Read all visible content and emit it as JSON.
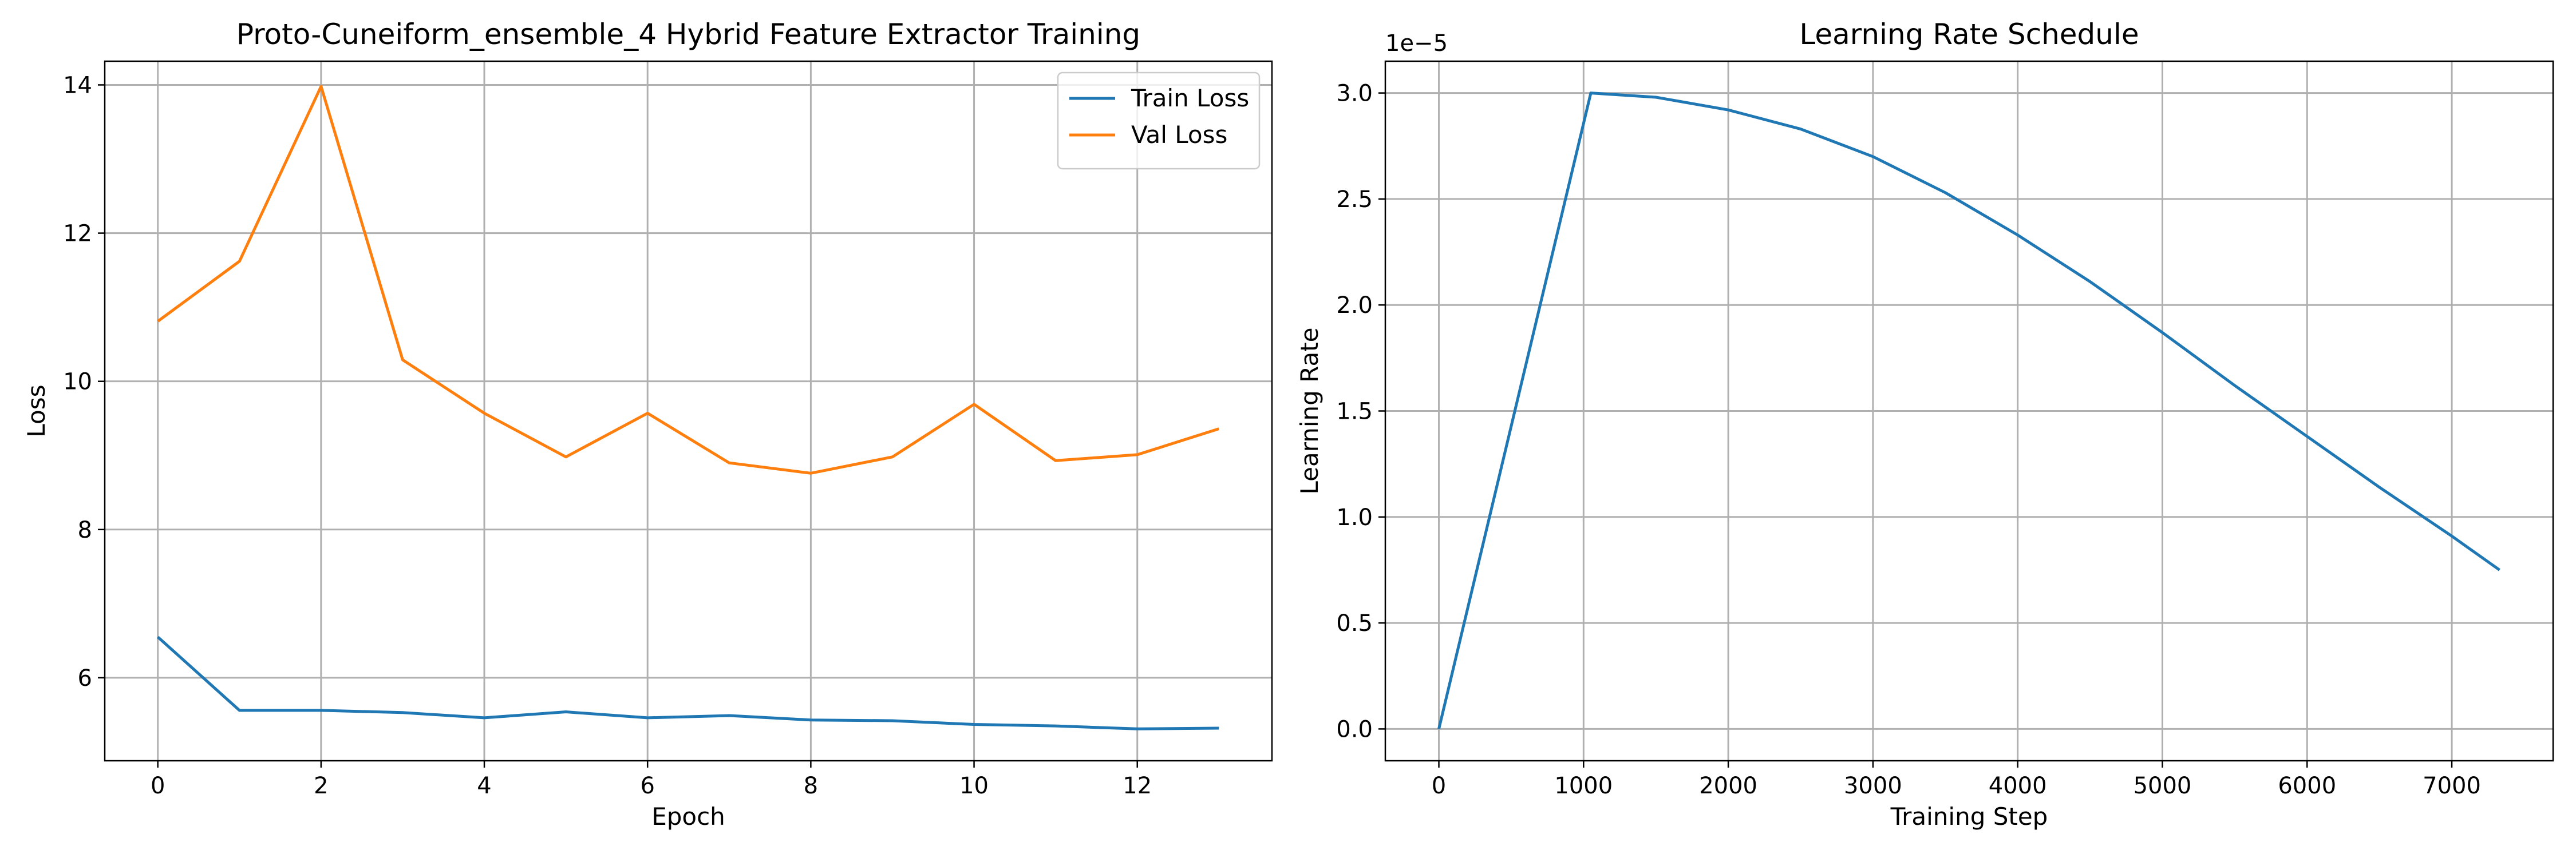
{
  "chart_data": [
    {
      "type": "line",
      "title": "Proto-Cuneiform_ensemble_4 Hybrid Feature Extractor Training",
      "xlabel": "Epoch",
      "ylabel": "Loss",
      "xlim": [
        -0.65,
        13.65
      ],
      "ylim": [
        4.88,
        14.32
      ],
      "xticks": [
        0,
        2,
        4,
        6,
        8,
        10,
        12
      ],
      "yticks": [
        6,
        8,
        10,
        12,
        14
      ],
      "grid": true,
      "legend": "top-right",
      "x": [
        0,
        1,
        2,
        3,
        4,
        5,
        6,
        7,
        8,
        9,
        10,
        11,
        12,
        13
      ],
      "series": [
        {
          "name": "Train Loss",
          "color": "#1f77b4",
          "values": [
            6.55,
            5.56,
            5.56,
            5.53,
            5.46,
            5.54,
            5.46,
            5.49,
            5.43,
            5.42,
            5.37,
            5.35,
            5.31,
            5.32
          ]
        },
        {
          "name": "Val Loss",
          "color": "#ff7f0e",
          "values": [
            10.81,
            11.62,
            13.98,
            10.29,
            9.57,
            8.98,
            9.57,
            8.9,
            8.76,
            8.98,
            9.69,
            8.93,
            9.01,
            9.36
          ]
        }
      ]
    },
    {
      "type": "line",
      "title": "Learning Rate Schedule",
      "xlabel": "Training Step",
      "ylabel": "Learning Rate",
      "offset_label": "1e−5",
      "xlim": [
        -370,
        7700
      ],
      "ylim": [
        -0.15,
        3.15
      ],
      "xticks": [
        0,
        1000,
        2000,
        3000,
        4000,
        5000,
        6000,
        7000
      ],
      "yticks": [
        0.0,
        0.5,
        1.0,
        1.5,
        2.0,
        2.5,
        3.0
      ],
      "ytick_labels": [
        "0.0",
        "0.5",
        "1.0",
        "1.5",
        "2.0",
        "2.5",
        "3.0"
      ],
      "grid": true,
      "series": [
        {
          "color": "#1f77b4",
          "x": [
            0,
            1050,
            1500,
            2000,
            2500,
            3000,
            3500,
            4000,
            4500,
            5000,
            5500,
            6000,
            6500,
            7000,
            7330
          ],
          "values": [
            0.0,
            3.0,
            2.98,
            2.92,
            2.83,
            2.7,
            2.53,
            2.33,
            2.11,
            1.87,
            1.62,
            1.38,
            1.14,
            0.91,
            0.75
          ]
        }
      ]
    }
  ]
}
